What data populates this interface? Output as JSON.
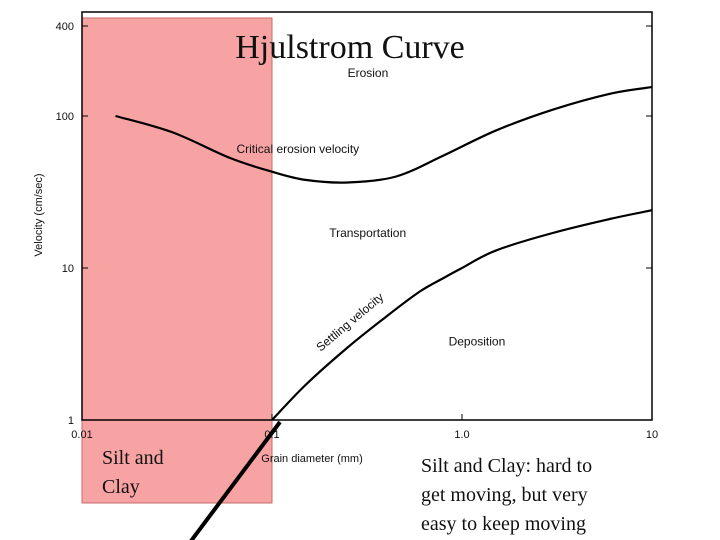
{
  "chart_data": {
    "type": "line",
    "title": "Hjulstrom Curve",
    "xlabel": "Grain diameter (mm)",
    "ylabel": "Velocity (cm/sec)",
    "x_scale": "log",
    "y_scale": "log",
    "xlim": [
      0.01,
      10
    ],
    "ylim": [
      1,
      400
    ],
    "x_ticks": [
      {
        "value": 0.01,
        "label": "0.01"
      },
      {
        "value": 0.1,
        "label": "0.1"
      },
      {
        "value": 1,
        "label": "1.0"
      },
      {
        "value": 10,
        "label": "10"
      }
    ],
    "y_ticks": [
      {
        "value": 1,
        "label": "1"
      },
      {
        "value": 10,
        "label": "10"
      },
      {
        "value": 100,
        "label": "100"
      },
      {
        "value": 400,
        "label": "400"
      }
    ],
    "series": [
      {
        "name": "Critical erosion velocity",
        "x": [
          0.015,
          0.03,
          0.06,
          0.1,
          0.15,
          0.25,
          0.45,
          0.8,
          1.5,
          3,
          6,
          10
        ],
        "y": [
          100,
          78,
          53,
          43,
          38,
          36.5,
          40,
          55,
          80,
          110,
          140,
          155
        ]
      },
      {
        "name": "Settling velocity",
        "x": [
          0.1,
          0.15,
          0.25,
          0.4,
          0.6,
          0.8,
          1.0,
          1.5,
          3,
          6,
          10
        ],
        "y": [
          1,
          1.7,
          3,
          4.8,
          7,
          8.6,
          10,
          13,
          17,
          21,
          24
        ]
      }
    ],
    "region_labels": [
      {
        "text": "Erosion",
        "x": 0.25,
        "y": 180
      },
      {
        "text": "Transportation",
        "x": 0.2,
        "y": 16
      },
      {
        "text": "Deposition",
        "x": 0.85,
        "y": 3.1
      }
    ],
    "curve_labels": [
      {
        "text": "Critical erosion velocity",
        "x": 0.065,
        "y": 57
      },
      {
        "text": "Settling velocity",
        "x": 0.18,
        "y": 2.8
      }
    ],
    "overlay": {
      "highlight_x_range": [
        0.01,
        0.1
      ],
      "highlight_color": "#f7a3a3",
      "highlight_label": "Silt and Clay",
      "note": "Silt and Clay: hard to get moving, but very easy to keep moving"
    }
  }
}
